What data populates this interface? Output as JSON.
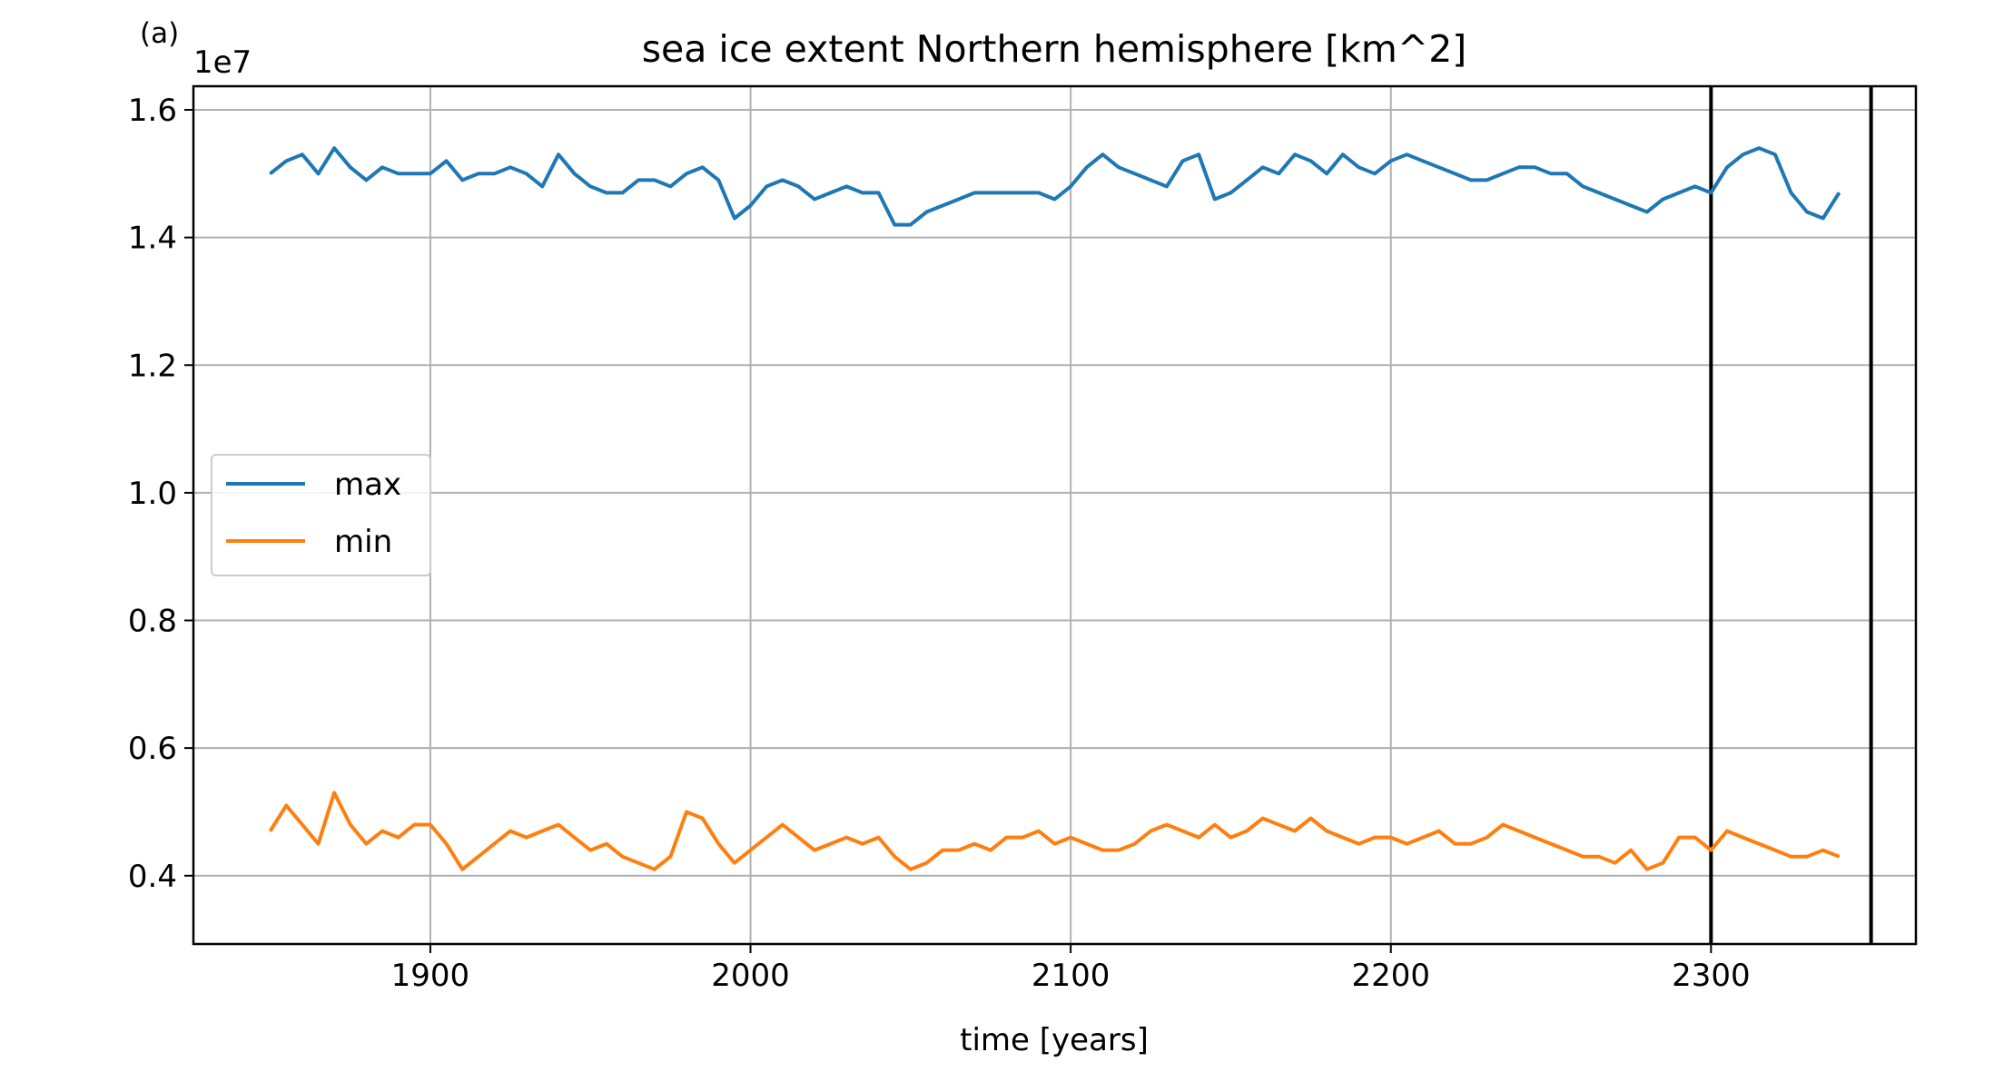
{
  "panel_label": "(a)",
  "chart_data": {
    "type": "line",
    "title": "sea ice extent Northern hemisphere [km^2]",
    "xlabel": "time [years]",
    "ylabel": "",
    "y_offset_label": "1e7",
    "xlim": [
      1826,
      2364
    ],
    "ylim": [
      0.293,
      1.637
    ],
    "x_ticks": [
      1900,
      2000,
      2100,
      2200,
      2300
    ],
    "y_ticks": [
      0.4,
      0.6,
      0.8,
      1.0,
      1.2,
      1.4,
      1.6
    ],
    "y_tick_labels": [
      "0.4",
      "0.6",
      "0.8",
      "1.0",
      "1.2",
      "1.4",
      "1.6"
    ],
    "grid": true,
    "legend_position": "center-left",
    "vertical_lines": [
      2300,
      2350
    ],
    "colors": {
      "max": "#1f77b4",
      "min": "#ff7f0e",
      "vline": "#000000"
    },
    "series": [
      {
        "name": "max",
        "color": "#1f77b4",
        "x": [
          1850,
          1855,
          1860,
          1865,
          1870,
          1875,
          1880,
          1885,
          1890,
          1895,
          1900,
          1905,
          1910,
          1915,
          1920,
          1925,
          1930,
          1935,
          1940,
          1945,
          1950,
          1955,
          1960,
          1965,
          1970,
          1975,
          1980,
          1985,
          1990,
          1995,
          2000,
          2005,
          2010,
          2015,
          2020,
          2025,
          2030,
          2035,
          2040,
          2045,
          2050,
          2055,
          2060,
          2065,
          2070,
          2075,
          2080,
          2085,
          2090,
          2095,
          2100,
          2105,
          2110,
          2115,
          2120,
          2125,
          2130,
          2135,
          2140,
          2145,
          2150,
          2155,
          2160,
          2165,
          2170,
          2175,
          2180,
          2185,
          2190,
          2195,
          2200,
          2205,
          2210,
          2215,
          2220,
          2225,
          2230,
          2235,
          2240,
          2245,
          2250,
          2255,
          2260,
          2265,
          2270,
          2275,
          2280,
          2285,
          2290,
          2295,
          2300,
          2305,
          2310,
          2315,
          2320,
          2325,
          2330,
          2335,
          2340
        ],
        "values": [
          1.5,
          1.52,
          1.53,
          1.5,
          1.54,
          1.51,
          1.49,
          1.51,
          1.5,
          1.5,
          1.5,
          1.52,
          1.49,
          1.5,
          1.5,
          1.51,
          1.5,
          1.48,
          1.53,
          1.5,
          1.48,
          1.47,
          1.47,
          1.49,
          1.49,
          1.48,
          1.5,
          1.51,
          1.49,
          1.43,
          1.45,
          1.48,
          1.49,
          1.48,
          1.46,
          1.47,
          1.48,
          1.47,
          1.47,
          1.42,
          1.42,
          1.44,
          1.45,
          1.46,
          1.47,
          1.47,
          1.47,
          1.47,
          1.47,
          1.46,
          1.48,
          1.51,
          1.53,
          1.51,
          1.5,
          1.49,
          1.48,
          1.52,
          1.53,
          1.46,
          1.47,
          1.49,
          1.51,
          1.5,
          1.53,
          1.52,
          1.5,
          1.53,
          1.51,
          1.5,
          1.52,
          1.53,
          1.52,
          1.51,
          1.5,
          1.49,
          1.49,
          1.5,
          1.51,
          1.51,
          1.5,
          1.5,
          1.48,
          1.47,
          1.46,
          1.45,
          1.44,
          1.46,
          1.47,
          1.48,
          1.47,
          1.51,
          1.53,
          1.54,
          1.53,
          1.47,
          1.44,
          1.43,
          1.47
        ]
      },
      {
        "name": "min",
        "color": "#ff7f0e",
        "x": [
          1850,
          1855,
          1860,
          1865,
          1870,
          1875,
          1880,
          1885,
          1890,
          1895,
          1900,
          1905,
          1910,
          1915,
          1920,
          1925,
          1930,
          1935,
          1940,
          1945,
          1950,
          1955,
          1960,
          1965,
          1970,
          1975,
          1980,
          1985,
          1990,
          1995,
          2000,
          2005,
          2010,
          2015,
          2020,
          2025,
          2030,
          2035,
          2040,
          2045,
          2050,
          2055,
          2060,
          2065,
          2070,
          2075,
          2080,
          2085,
          2090,
          2095,
          2100,
          2105,
          2110,
          2115,
          2120,
          2125,
          2130,
          2135,
          2140,
          2145,
          2150,
          2155,
          2160,
          2165,
          2170,
          2175,
          2180,
          2185,
          2190,
          2195,
          2200,
          2205,
          2210,
          2215,
          2220,
          2225,
          2230,
          2235,
          2240,
          2245,
          2250,
          2255,
          2260,
          2265,
          2270,
          2275,
          2280,
          2285,
          2290,
          2295,
          2300,
          2305,
          2310,
          2315,
          2320,
          2325,
          2330,
          2335,
          2340
        ],
        "values": [
          0.47,
          0.51,
          0.48,
          0.45,
          0.53,
          0.48,
          0.45,
          0.47,
          0.46,
          0.48,
          0.48,
          0.45,
          0.41,
          0.43,
          0.45,
          0.47,
          0.46,
          0.47,
          0.48,
          0.46,
          0.44,
          0.45,
          0.43,
          0.42,
          0.41,
          0.43,
          0.5,
          0.49,
          0.45,
          0.42,
          0.44,
          0.46,
          0.48,
          0.46,
          0.44,
          0.45,
          0.46,
          0.45,
          0.46,
          0.43,
          0.41,
          0.42,
          0.44,
          0.44,
          0.45,
          0.44,
          0.46,
          0.46,
          0.47,
          0.45,
          0.46,
          0.45,
          0.44,
          0.44,
          0.45,
          0.47,
          0.48,
          0.47,
          0.46,
          0.48,
          0.46,
          0.47,
          0.49,
          0.48,
          0.47,
          0.49,
          0.47,
          0.46,
          0.45,
          0.46,
          0.46,
          0.45,
          0.46,
          0.47,
          0.45,
          0.45,
          0.46,
          0.48,
          0.47,
          0.46,
          0.45,
          0.44,
          0.43,
          0.43,
          0.42,
          0.44,
          0.41,
          0.42,
          0.46,
          0.46,
          0.44,
          0.47,
          0.46,
          0.45,
          0.44,
          0.43,
          0.43,
          0.44,
          0.43
        ]
      }
    ]
  }
}
